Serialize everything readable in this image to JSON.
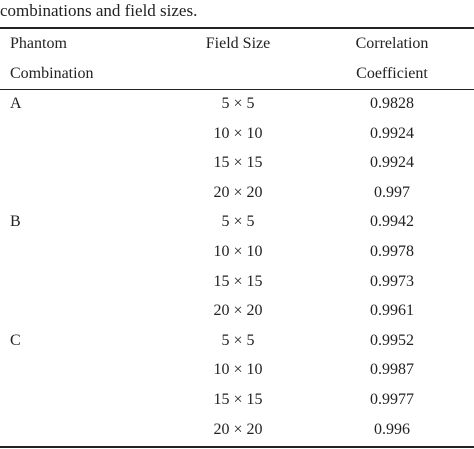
{
  "caption": "combinations and field sizes.",
  "table": {
    "header": [
      [
        "Phantom",
        "Combination"
      ],
      [
        "Field Size"
      ],
      [
        "Correlation",
        "Coefficient"
      ]
    ],
    "groups": [
      {
        "name": "A",
        "rows": [
          [
            "5 × 5",
            0.9828
          ],
          [
            "10 × 10",
            0.9924
          ],
          [
            "15 × 15",
            0.9924
          ],
          [
            "20 × 20",
            0.997
          ]
        ]
      },
      {
        "name": "B",
        "rows": [
          [
            "5 × 5",
            0.9942
          ],
          [
            "10 × 10",
            0.9978
          ],
          [
            "15 × 15",
            0.9973
          ],
          [
            "20 × 20",
            0.9961
          ]
        ]
      },
      {
        "name": "C",
        "rows": [
          [
            "5 × 5",
            0.9952
          ],
          [
            "10 × 10",
            0.9987
          ],
          [
            "15 × 15",
            0.9977
          ],
          [
            "20 × 20",
            0.996
          ]
        ]
      }
    ]
  }
}
